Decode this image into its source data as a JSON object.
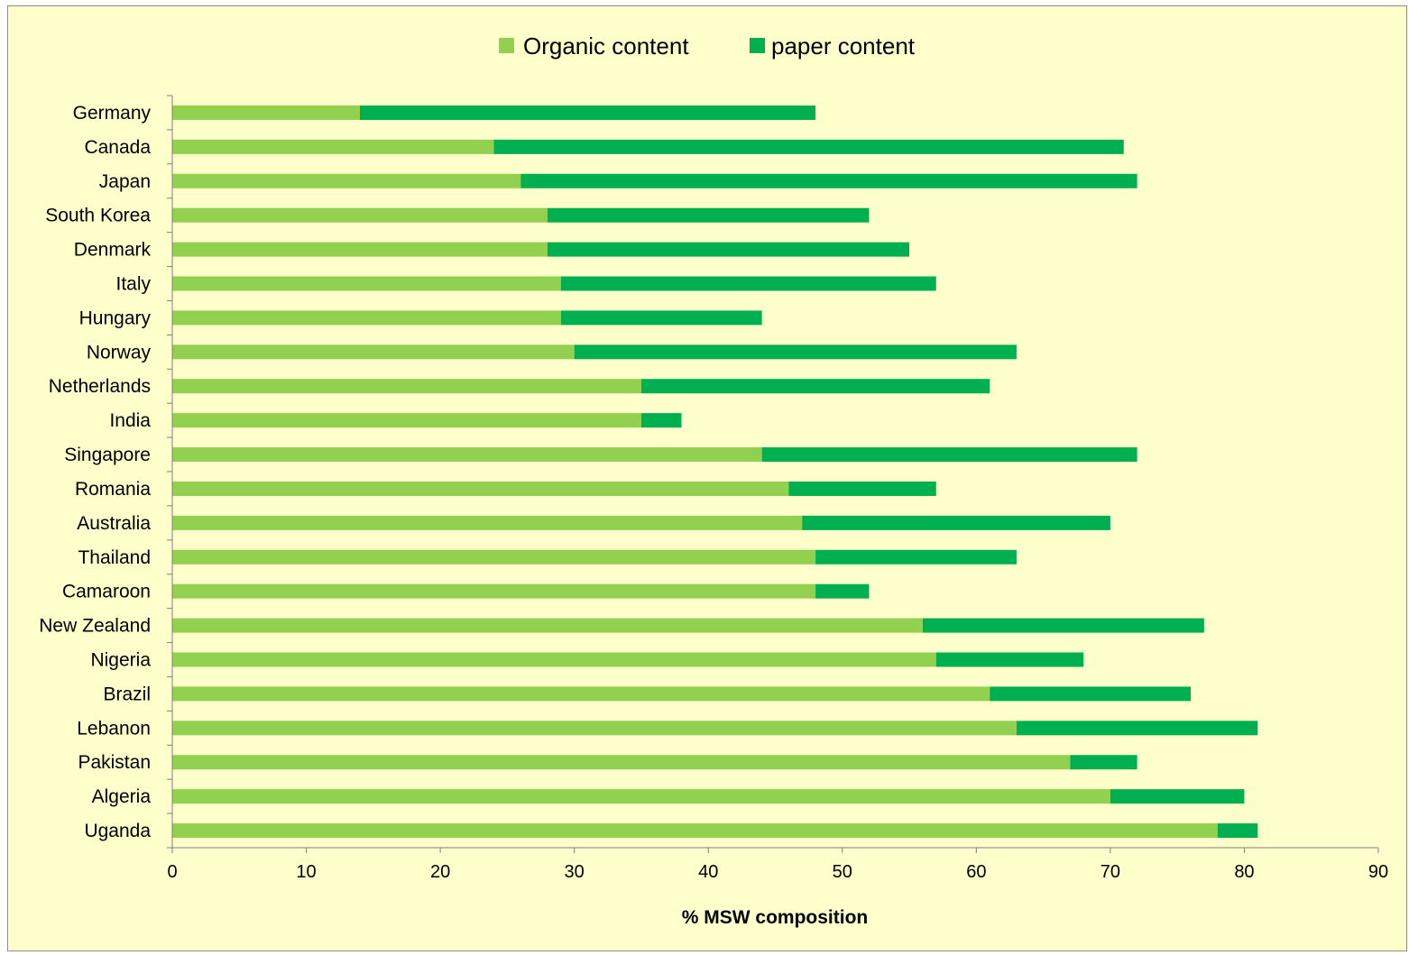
{
  "chart_data": {
    "type": "bar",
    "orientation": "horizontal",
    "stacked": true,
    "title": "",
    "xlabel": "% MSW composition",
    "ylabel": "",
    "xlim": [
      0,
      90
    ],
    "xticks": [
      0,
      10,
      20,
      30,
      40,
      50,
      60,
      70,
      80,
      90
    ],
    "legend_position": "top",
    "grid": false,
    "categories": [
      "Germany",
      "Canada",
      "Japan",
      "South Korea",
      "Denmark",
      "Italy",
      "Hungary",
      "Norway",
      "Netherlands",
      "India",
      "Singapore",
      "Romania",
      "Australia",
      "Thailand",
      "Camaroon",
      "New Zealand",
      "Nigeria",
      "Brazil",
      "Lebanon",
      "Pakistan",
      "Algeria",
      "Uganda"
    ],
    "series": [
      {
        "name": "Organic content",
        "color": "#92d050",
        "values": [
          14,
          24,
          26,
          28,
          28,
          29,
          29,
          30,
          35,
          35,
          44,
          46,
          47,
          48,
          48,
          56,
          57,
          61,
          63,
          67,
          70,
          78
        ]
      },
      {
        "name": "paper content",
        "color": "#00b050",
        "values": [
          34,
          47,
          46,
          24,
          27,
          28,
          15,
          33,
          26,
          3,
          28,
          11,
          23,
          15,
          4,
          21,
          11,
          15,
          18,
          5,
          10,
          3
        ]
      }
    ]
  },
  "colors": {
    "background": "#ffffcc",
    "border": "#8c8c8c",
    "axis": "#7f7f7f"
  }
}
